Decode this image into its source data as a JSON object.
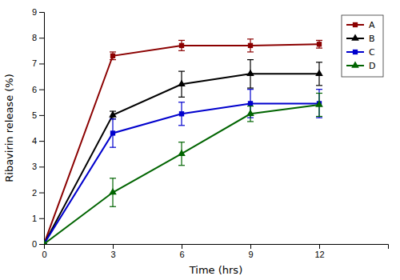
{
  "chart_data": {
    "type": "line",
    "x": [
      0,
      3,
      6,
      9,
      12
    ],
    "series": [
      {
        "name": "A",
        "color": "#8B0000",
        "marker": "square",
        "values": [
          0,
          7.3,
          7.7,
          7.7,
          7.75
        ],
        "errors": [
          0,
          0.15,
          0.2,
          0.25,
          0.15
        ]
      },
      {
        "name": "B",
        "color": "#000000",
        "marker": "triangle",
        "values": [
          0,
          5.0,
          6.2,
          6.6,
          6.6
        ],
        "errors": [
          0,
          0.15,
          0.5,
          0.55,
          0.45
        ]
      },
      {
        "name": "C",
        "color": "#0000CD",
        "marker": "square",
        "values": [
          0,
          4.3,
          5.05,
          5.45,
          5.45
        ],
        "errors": [
          0,
          0.55,
          0.45,
          0.55,
          0.55
        ]
      },
      {
        "name": "D",
        "color": "#006400",
        "marker": "triangle",
        "values": [
          0,
          2.0,
          3.5,
          5.05,
          5.4
        ],
        "errors": [
          0,
          0.55,
          0.45,
          0.3,
          0.45
        ]
      }
    ],
    "xlabel": "Time (hrs)",
    "ylabel": "Ribavirin release (%)",
    "xlim": [
      0,
      15
    ],
    "ylim": [
      0,
      9
    ],
    "xticks": [
      0,
      3,
      6,
      9,
      12
    ],
    "yticks": [
      0,
      1,
      2,
      3,
      4,
      5,
      6,
      7,
      8,
      9
    ],
    "grid": false,
    "legend": "upper right"
  }
}
